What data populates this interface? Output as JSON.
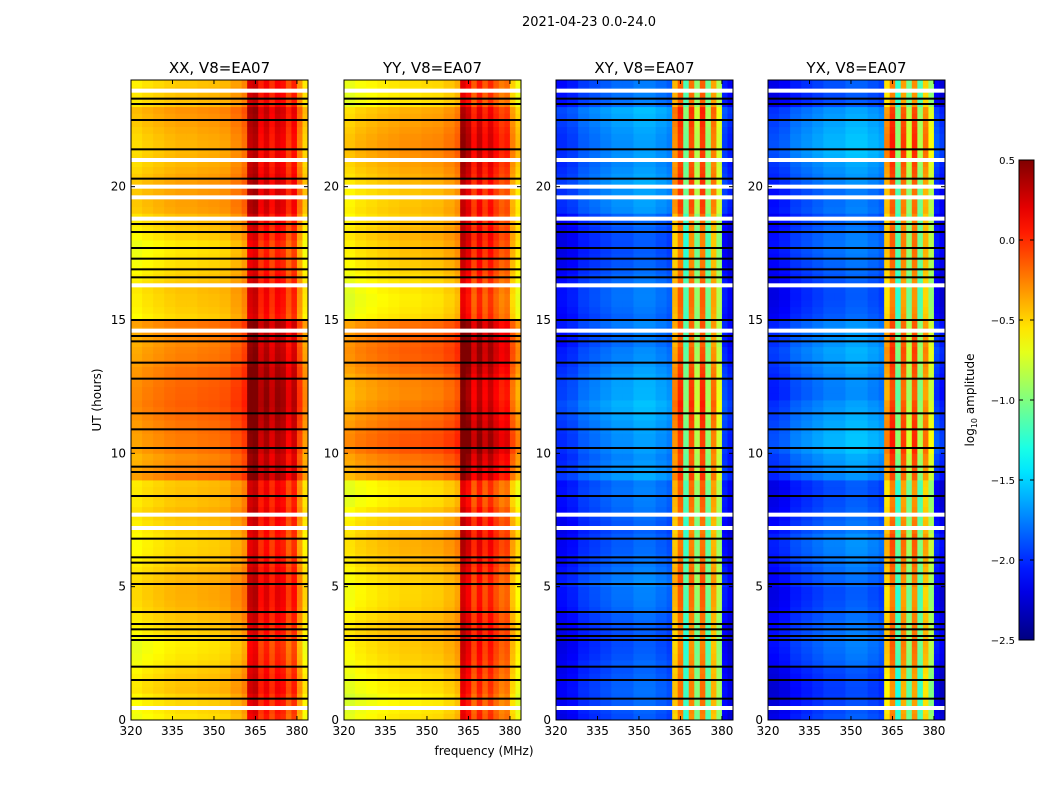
{
  "chart_data": {
    "type": "heatmap",
    "title": "2021-04-23 0.0-24.0",
    "xlabel": "frequency (MHz)",
    "ylabel": "UT (hours)",
    "xlim": [
      320,
      384
    ],
    "ylim": [
      0,
      24
    ],
    "xticks": [
      320,
      335,
      350,
      365,
      380
    ],
    "yticks": [
      0,
      5,
      10,
      15,
      20
    ],
    "freq_bin_edges_mhz": [
      320,
      324,
      328,
      332,
      336,
      340,
      344,
      348,
      352,
      356,
      360,
      362,
      364,
      366,
      368,
      370,
      372,
      374,
      376,
      378,
      380,
      382,
      384
    ],
    "flagged_black_hours": [
      0.8,
      1.5,
      2.0,
      3.0,
      3.15,
      3.4,
      3.6,
      4.05,
      5.1,
      5.5,
      5.9,
      6.1,
      6.8,
      8.4,
      9.3,
      9.5,
      10.2,
      10.9,
      11.5,
      12.8,
      13.4,
      14.2,
      14.4,
      15.0,
      16.6,
      16.9,
      17.3,
      17.7,
      18.3,
      18.6,
      20.3,
      21.4,
      22.5,
      23.1,
      23.3
    ],
    "flagged_white_hours": [
      0.45,
      7.2,
      7.7,
      14.6,
      16.3,
      18.8,
      19.6,
      20.0,
      21.0,
      23.6
    ],
    "colorbar": {
      "label": "log10 amplitude",
      "label_main": "log",
      "label_sub": "10",
      "label_rest": " amplitude",
      "range": [
        -2.5,
        0.5
      ],
      "ticks": [
        "0.5",
        "0.0",
        "−0.5",
        "−1.0",
        "−1.5",
        "−2.0",
        "−2.5"
      ],
      "tick_values": [
        0.5,
        0.0,
        -0.5,
        -1.0,
        -1.5,
        -2.0,
        -2.5
      ],
      "colormap": "jet"
    },
    "panels": [
      {
        "title": "XX, V8=EA07",
        "freq_profile": [
          -0.62,
          -0.58,
          -0.55,
          -0.52,
          -0.5,
          -0.5,
          -0.48,
          -0.47,
          -0.45,
          -0.38,
          -0.3,
          0.2,
          0.25,
          0.0,
          0.12,
          -0.05,
          0.1,
          0.05,
          -0.15,
          0.0,
          -0.35,
          -0.6
        ],
        "time_offset_hourly": [
          -0.05,
          0,
          -0.02,
          0.05,
          0.05,
          0.05,
          0.05,
          0.05,
          0,
          0.25,
          0.32,
          0.3,
          0.28,
          0.3,
          0.28,
          -0.02,
          0,
          0,
          0.05,
          0.1,
          0.12,
          0.15,
          0.15,
          0.0
        ]
      },
      {
        "title": "YY, V8=EA07",
        "freq_profile": [
          -0.65,
          -0.6,
          -0.57,
          -0.54,
          -0.52,
          -0.5,
          -0.5,
          -0.48,
          -0.47,
          -0.42,
          -0.35,
          0.25,
          0.15,
          -0.1,
          0.1,
          -0.1,
          0.05,
          -0.1,
          -0.2,
          -0.15,
          -0.45,
          -0.62
        ],
        "time_offset_hourly": [
          -0.05,
          0,
          -0.02,
          0.05,
          0.05,
          0.05,
          0.05,
          0.05,
          0,
          0.25,
          0.32,
          0.3,
          0.28,
          0.3,
          0.28,
          -0.02,
          0,
          0,
          0.05,
          0.1,
          0.12,
          0.15,
          0.15,
          0.0
        ]
      },
      {
        "title": "XY, V8=EA07",
        "freq_profile": [
          -2.15,
          -2.1,
          -2.0,
          -1.95,
          -1.9,
          -1.85,
          -1.85,
          -1.8,
          -1.8,
          -1.85,
          -1.9,
          -0.45,
          -0.2,
          -1.2,
          -0.25,
          -1.0,
          -0.2,
          -1.1,
          -0.4,
          -0.9,
          -2.1,
          -2.2
        ],
        "time_offset_hourly": [
          -0.05,
          -0.05,
          0,
          0,
          0,
          0.05,
          0.05,
          0,
          0,
          0.15,
          0.2,
          0.2,
          0.15,
          0.15,
          0.1,
          0,
          0,
          0,
          0,
          0.1,
          0.15,
          0.2,
          0.2,
          0.0
        ]
      },
      {
        "title": "YX, V8=EA07",
        "freq_profile": [
          -2.15,
          -2.1,
          -2.0,
          -1.95,
          -1.9,
          -1.85,
          -1.85,
          -1.8,
          -1.8,
          -1.85,
          -1.9,
          -0.5,
          -0.2,
          -1.2,
          -0.3,
          -1.0,
          -0.25,
          -1.1,
          -0.45,
          -0.9,
          -2.1,
          -2.2
        ],
        "time_offset_hourly": [
          -0.05,
          -0.05,
          0,
          0,
          0,
          0.05,
          0.05,
          0,
          0,
          0.15,
          0.2,
          0.2,
          0.15,
          0.15,
          0.1,
          0,
          0,
          0,
          0,
          0.1,
          0.15,
          0.2,
          0.2,
          0.0
        ]
      }
    ]
  }
}
